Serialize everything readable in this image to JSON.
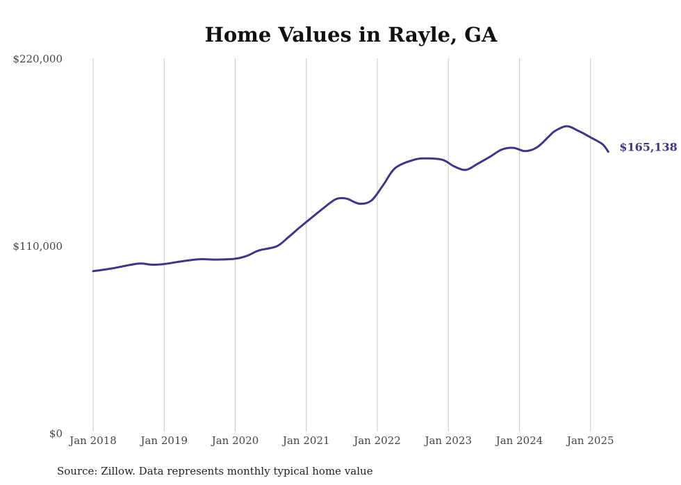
{
  "chart_data": {
    "type": "line",
    "title": "Home Values in Rayle, GA",
    "xlabel": "",
    "ylabel": "",
    "ylim": [
      0,
      220000
    ],
    "y_ticks": [
      {
        "value": 0,
        "label": "$0"
      },
      {
        "value": 110000,
        "label": "$110,000"
      },
      {
        "value": 220000,
        "label": "$220,000"
      }
    ],
    "x_ticks": [
      {
        "value": "2018-01",
        "label": "Jan 2018"
      },
      {
        "value": "2019-01",
        "label": "Jan 2019"
      },
      {
        "value": "2020-01",
        "label": "Jan 2020"
      },
      {
        "value": "2021-01",
        "label": "Jan 2021"
      },
      {
        "value": "2022-01",
        "label": "Jan 2022"
      },
      {
        "value": "2023-01",
        "label": "Jan 2023"
      },
      {
        "value": "2024-01",
        "label": "Jan 2024"
      },
      {
        "value": "2025-01",
        "label": "Jan 2025"
      }
    ],
    "grid": "vertical",
    "line_color": "#3d3785",
    "series": [
      {
        "x": [
          "2018-01",
          "2018-04",
          "2018-07",
          "2018-09",
          "2018-11",
          "2019-01",
          "2019-04",
          "2019-07",
          "2019-10",
          "2020-01",
          "2020-03",
          "2020-05",
          "2020-08",
          "2020-10",
          "2020-12",
          "2021-03",
          "2021-05",
          "2021-06",
          "2021-07",
          "2021-08",
          "2021-10",
          "2021-12",
          "2022-02",
          "2022-04",
          "2022-07",
          "2022-09",
          "2022-12",
          "2023-02",
          "2023-04",
          "2023-06",
          "2023-08",
          "2023-10",
          "2023-12",
          "2024-02",
          "2024-04",
          "2024-06",
          "2024-07",
          "2024-09",
          "2024-11",
          "2025-01",
          "2025-03",
          "2025-04"
        ],
        "values": [
          95000,
          96500,
          98500,
          99500,
          98800,
          99200,
          100800,
          102000,
          101800,
          102300,
          104000,
          107200,
          109600,
          115000,
          121000,
          129500,
          135000,
          137300,
          137900,
          137400,
          134600,
          136500,
          145600,
          155500,
          160200,
          161200,
          160400,
          156500,
          154500,
          158200,
          162100,
          166400,
          167400,
          165500,
          167800,
          174200,
          177300,
          180100,
          177300,
          173600,
          169600,
          165138
        ]
      }
    ],
    "end_label": "$165,138",
    "source_note": "Source: Zillow. Data represents monthly typical home value"
  }
}
